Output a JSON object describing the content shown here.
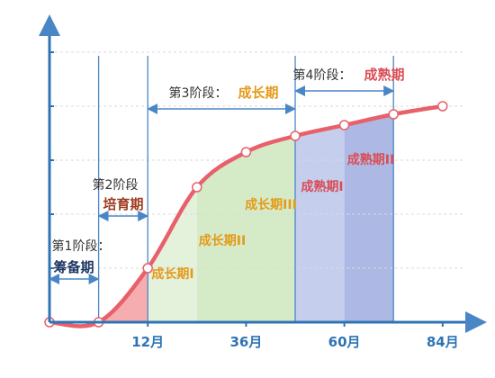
{
  "chart_data": {
    "type": "area",
    "x_axis": {
      "ticks": [
        {
          "value": 12,
          "label": "12月"
        },
        {
          "value": 36,
          "label": "36月"
        },
        {
          "value": 60,
          "label": "60月"
        },
        {
          "value": 84,
          "label": "84月"
        }
      ],
      "range": [
        -12,
        90
      ]
    },
    "y_axis": {
      "range": [
        0,
        100
      ],
      "tick_labels": false,
      "gridlines": [
        20,
        40,
        60,
        80,
        100
      ]
    },
    "series": [
      {
        "type": "line",
        "points": [
          {
            "x": -12,
            "y": 0
          },
          {
            "x": 0,
            "y": 0
          },
          {
            "x": 12,
            "y": 20
          },
          {
            "x": 24,
            "y": 50
          },
          {
            "x": 36,
            "y": 63
          },
          {
            "x": 48,
            "y": 69
          },
          {
            "x": 60,
            "y": 73
          },
          {
            "x": 72,
            "y": 77
          },
          {
            "x": 84,
            "y": 80
          }
        ]
      }
    ],
    "stage_boundaries": [
      0,
      12,
      48,
      72
    ],
    "stages": [
      {
        "label": "第1阶段：",
        "name": "筹备期",
        "x_from": -12,
        "x_to": 0
      },
      {
        "label": "第2阶段",
        "name": "培育期",
        "x_from": 0,
        "x_to": 12
      },
      {
        "label": "第3阶段：",
        "name": "成长期",
        "x_from": 12,
        "x_to": 48
      },
      {
        "label": "第4阶段：",
        "name": "成熟期",
        "x_from": 48,
        "x_to": 72
      }
    ],
    "regions": [
      {
        "name": "成长期I",
        "x_from": 0,
        "x_to": 12,
        "color": "#f5a9ab"
      },
      {
        "name": "成长期II",
        "x_from": 12,
        "x_to": 24,
        "color": "#e3f1da"
      },
      {
        "name": "成长期III",
        "x_from": 24,
        "x_to": 48,
        "color": "#d3eac5"
      },
      {
        "name": "成熟期I",
        "x_from": 48,
        "x_to": 60,
        "color": "#c3cbec"
      },
      {
        "name": "成熟期II",
        "x_from": 60,
        "x_to": 72,
        "color": "#a9b5e3"
      }
    ],
    "colors": {
      "axis": "#2e74b5",
      "curve": "#e8606a",
      "stage_name": "#e59a1a",
      "stage_name_alt": "#d94d56",
      "prep_name": "#1f3864",
      "region_label_orange": "#e59a1a",
      "region_label_red": "#d94d56"
    }
  }
}
